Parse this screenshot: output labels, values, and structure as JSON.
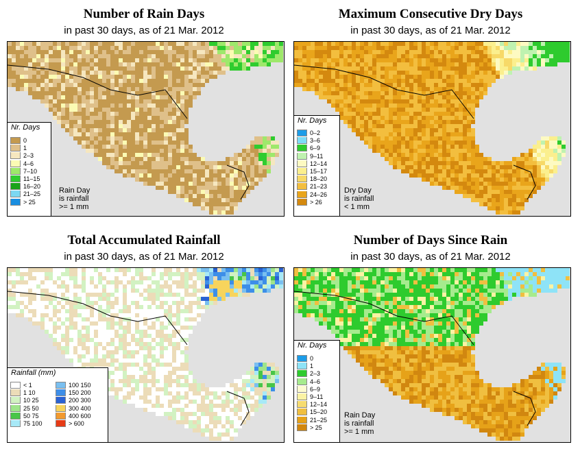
{
  "colors": {
    "ocean": "#e1e1e1",
    "outside_land": "#e1e1e1"
  },
  "panels": [
    {
      "title": "Number of Rain Days",
      "subtitle": "in past 30 days, as of  21 Mar. 2012",
      "legend": {
        "title": "Nr. Days",
        "items": [
          {
            "label": "0",
            "color": "#c49a4f"
          },
          {
            "label": "1",
            "color": "#dfc08a"
          },
          {
            "label": "2–3",
            "color": "#f6e7bf"
          },
          {
            "label": "4–6",
            "color": "#fbfbb4"
          },
          {
            "label": "7–10",
            "color": "#9ee86b"
          },
          {
            "label": "11–15",
            "color": "#2fcc2f"
          },
          {
            "label": "16–20",
            "color": "#19a319"
          },
          {
            "label": "21–25",
            "color": "#7cd8f2"
          },
          {
            "label": "> 25",
            "color": "#1a8ee0"
          }
        ]
      },
      "note": [
        "Rain Day",
        "is rainfall",
        ">= 1 mm"
      ]
    },
    {
      "title": "Maximum Consecutive Dry Days",
      "subtitle": "in past 30 days, as of  21 Mar. 2012",
      "legend": {
        "title": "Nr. Days",
        "items": [
          {
            "label": "0–2",
            "color": "#1c9ce8"
          },
          {
            "label": "3–6",
            "color": "#7ddcf7"
          },
          {
            "label": "6–9",
            "color": "#2ecb2e"
          },
          {
            "label": "9–11",
            "color": "#bff2b0"
          },
          {
            "label": "12–14",
            "color": "#fdfac2"
          },
          {
            "label": "15–17",
            "color": "#fbef8e"
          },
          {
            "label": "18–20",
            "color": "#f7d968"
          },
          {
            "label": "21–23",
            "color": "#f3be3e"
          },
          {
            "label": "24–26",
            "color": "#e9a51b"
          },
          {
            "label": "> 26",
            "color": "#d4890f"
          }
        ]
      },
      "note": [
        "Dry Day",
        "is rainfall",
        "< 1 mm"
      ]
    },
    {
      "title": "Total Accumulated Rainfall",
      "subtitle": "in past 30 days, as of  21 Mar. 2012",
      "legend": {
        "title": "Rainfall (mm)",
        "items": [
          {
            "label": "< 1",
            "color": "#ffffff"
          },
          {
            "label": "1   10",
            "color": "#ecdcb8"
          },
          {
            "label": "10   25",
            "color": "#d2f2c2"
          },
          {
            "label": "25   50",
            "color": "#9ee58a"
          },
          {
            "label": "50   75",
            "color": "#48c548"
          },
          {
            "label": "75  100",
            "color": "#a7e9f7"
          },
          {
            "label": "100  150",
            "color": "#79bff0"
          },
          {
            "label": "150  200",
            "color": "#3d8ee8"
          },
          {
            "label": "200  300",
            "color": "#2a62d4"
          },
          {
            "label": "300  400",
            "color": "#f7d45c"
          },
          {
            "label": "400  600",
            "color": "#f29a2f"
          },
          {
            "label": "> 600",
            "color": "#e63b16"
          }
        ]
      }
    },
    {
      "title": "Number of Days Since Rain",
      "subtitle": "in past 30 days, as of  21 Mar. 2012",
      "legend": {
        "title": "Nr. Days",
        "items": [
          {
            "label": "0",
            "color": "#1c9ce8"
          },
          {
            "label": "1",
            "color": "#8ee3f7"
          },
          {
            "label": "2–3",
            "color": "#2ecb2e"
          },
          {
            "label": "4–6",
            "color": "#a6eb8e"
          },
          {
            "label": "6–9",
            "color": "#fdfbd1"
          },
          {
            "label": "9–11",
            "color": "#fbf3a4"
          },
          {
            "label": "12–14",
            "color": "#f6dc70"
          },
          {
            "label": "15–20",
            "color": "#f0bf40"
          },
          {
            "label": "21–25",
            "color": "#e6a219"
          },
          {
            "label": "> 25",
            "color": "#d18710"
          }
        ]
      },
      "note": [
        "Rain Day",
        "is rainfall",
        ">= 1 mm"
      ]
    }
  ]
}
